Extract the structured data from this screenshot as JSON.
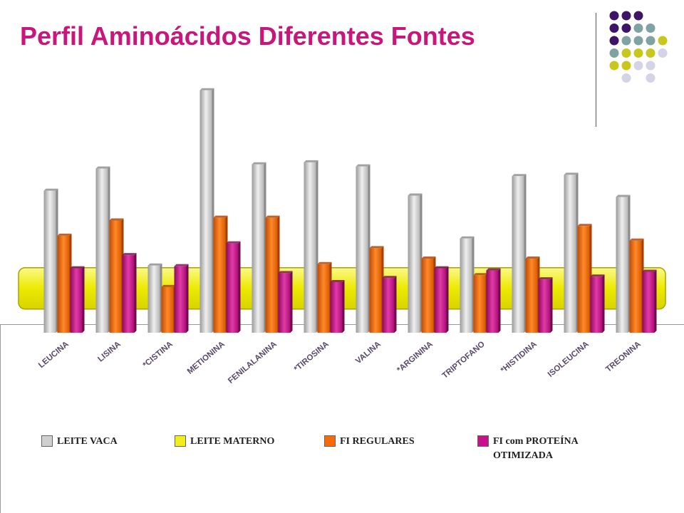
{
  "title": "Perfil Aminoácidos Diferentes Fontes",
  "colors": {
    "title": "#c8177a",
    "leite_vaca": "#cfcfcf",
    "leite_materno": "#f2ee1c",
    "fi_regulares": "#f46b08",
    "fi_otimizada": "#c8108a",
    "dot_purple": "#3d1466",
    "dot_teal": "#7fa3a3",
    "dot_olive": "#c9c61e",
    "dot_lavender": "#d4d4e6"
  },
  "decor": {
    "dot_grid": [
      [
        "purple",
        "purple",
        "purple",
        "",
        "",
        ""
      ],
      [
        "purple",
        "purple",
        "teal",
        "teal",
        "",
        ""
      ],
      [
        "purple",
        "teal",
        "teal",
        "teal",
        "olive",
        ""
      ],
      [
        "teal",
        "olive",
        "olive",
        "olive",
        "lavender",
        ""
      ],
      [
        "olive",
        "olive",
        "lavender",
        "lavender",
        "",
        ""
      ],
      [
        "",
        "lavender",
        "",
        "lavender",
        "",
        ""
      ]
    ]
  },
  "legend": [
    {
      "label": "LEITE VACA",
      "color_key": "leite_vaca"
    },
    {
      "label": "LEITE MATERNO",
      "color_key": "leite_materno"
    },
    {
      "label": "FI REGULARES",
      "color_key": "fi_regulares"
    },
    {
      "label": "FI com PROTEÍNA OTIMIZADA",
      "color_key": "fi_otimizada"
    }
  ],
  "chart_data": {
    "type": "bar",
    "title": "Perfil Aminoácidos Diferentes Fontes",
    "xlabel": "",
    "ylabel": "",
    "grid": false,
    "legend_position": "bottom",
    "relative_to": "LEITE MATERNO",
    "categories": [
      "LEUCINA",
      "LISINA",
      "*CISTINA",
      "METIONINA",
      "FENILALANINA",
      "*TIROSINA",
      "VALINA",
      "*ARGININA",
      "TRIPTOFANO",
      "*HISTIDINA",
      "ISOLEUCINA",
      "TREONINA"
    ],
    "series": [
      {
        "name": "LEITE VACA",
        "values": [
          205,
          237,
          97,
          350,
          243,
          246,
          240,
          198,
          136,
          226,
          228,
          196
        ]
      },
      {
        "name": "LEITE MATERNO",
        "values": [
          100,
          100,
          100,
          100,
          100,
          100,
          100,
          100,
          100,
          100,
          100,
          100
        ]
      },
      {
        "name": "FI REGULARES",
        "values": [
          140,
          162,
          66,
          166,
          166,
          99,
          122,
          107,
          83,
          107,
          154,
          133
        ]
      },
      {
        "name": "FI com PROTEÍNA OTIMIZADA",
        "values": [
          93,
          112,
          96,
          129,
          86,
          73,
          79,
          93,
          90,
          77,
          81,
          88
        ]
      }
    ],
    "ylim": [
      0,
      360
    ]
  }
}
